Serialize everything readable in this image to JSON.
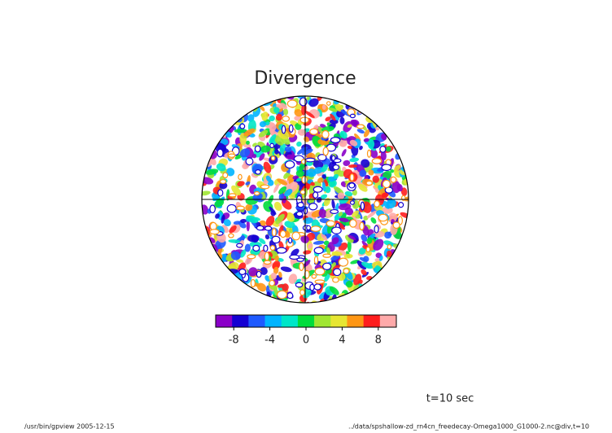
{
  "title": "Divergence",
  "colorbar": {
    "colors": [
      "#8a00c8",
      "#1400d2",
      "#1e5aff",
      "#00b4ff",
      "#00e6c8",
      "#00dc3c",
      "#a0e632",
      "#e6e632",
      "#ff9614",
      "#ff1e1e",
      "#ffaaaa"
    ],
    "lim": [
      -10,
      10
    ],
    "ticks": [
      -8,
      -4,
      0,
      4,
      8
    ]
  },
  "annotation": "t=10 sec",
  "footer": {
    "left": "/usr/bin/gpview  2005-12-15",
    "right": "../data/spshallow-zd_rn4cn_freedecay-Omega1000_G1000-2.nc@div,t=10"
  }
}
